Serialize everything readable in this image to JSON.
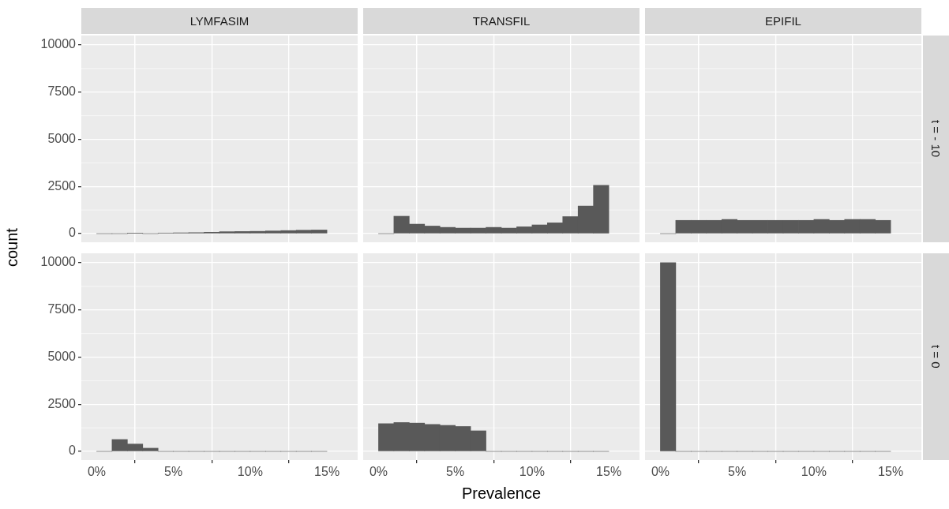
{
  "chart_data": [
    {
      "type": "histogram",
      "title": "LYMFASIM",
      "ylabel": "count",
      "bins": [
        0,
        1,
        2,
        3,
        4,
        5,
        6,
        7,
        8,
        9,
        10,
        11,
        12,
        13,
        14,
        15
      ],
      "values": [
        0,
        0,
        20,
        0,
        30,
        40,
        50,
        70,
        100,
        110,
        120,
        140,
        160,
        180,
        190
      ],
      "color": "#595959",
      "xlim": [
        -1,
        17
      ],
      "ylim": [
        -460,
        10500
      ],
      "yticks": [
        0,
        2500,
        5000,
        7500,
        10000
      ],
      "grid": true,
      "tick_labels": "y"
    },
    {
      "type": "histogram",
      "title": "TRANSFIL",
      "bins": [
        0,
        1,
        2,
        3,
        4,
        5,
        6,
        7,
        8,
        9,
        10,
        11,
        12,
        13,
        14,
        15
      ],
      "values": [
        0,
        920,
        500,
        400,
        330,
        290,
        290,
        330,
        290,
        360,
        460,
        570,
        900,
        1460,
        2560
      ],
      "color": "#595959",
      "xlim": [
        -1,
        17
      ],
      "ylim": [
        -460,
        10500
      ],
      "grid": true,
      "tick_labels": false
    },
    {
      "type": "histogram",
      "title": "EPIFIL",
      "annotations": [
        "t = - 10"
      ],
      "bins": [
        0,
        1,
        2,
        3,
        4,
        5,
        6,
        7,
        8,
        9,
        10,
        11,
        12,
        13,
        14,
        15
      ],
      "values": [
        0,
        700,
        700,
        700,
        750,
        700,
        700,
        700,
        700,
        700,
        750,
        700,
        750,
        750,
        700
      ],
      "color": "#595959",
      "xlim": [
        -1,
        17
      ],
      "ylim": [
        -460,
        10500
      ],
      "grid": true,
      "tick_labels": false
    },
    {
      "type": "histogram",
      "bins": [
        0,
        1,
        2,
        3,
        4,
        5,
        6,
        7,
        8,
        9,
        10,
        11,
        12,
        13,
        14,
        15
      ],
      "values": [
        0,
        630,
        390,
        170,
        0,
        0,
        0,
        0,
        0,
        0,
        0,
        0,
        0,
        0,
        0
      ],
      "color": "#595959",
      "xlim": [
        -1,
        17
      ],
      "ylim": [
        -460,
        10500
      ],
      "xticks": [
        {
          "value": 0,
          "label": "0%"
        },
        {
          "value": 5,
          "label": "5%"
        },
        {
          "value": 10,
          "label": "10%"
        },
        {
          "value": 15,
          "label": "15%"
        }
      ],
      "yticks": [
        0,
        2500,
        5000,
        7500,
        10000
      ],
      "grid": true
    },
    {
      "type": "histogram",
      "xlabel": "Prevalence",
      "bins": [
        0,
        1,
        2,
        3,
        4,
        5,
        6,
        7,
        8,
        9,
        10,
        11,
        12,
        13,
        14,
        15
      ],
      "values": [
        1470,
        1530,
        1500,
        1430,
        1380,
        1320,
        1090,
        0,
        0,
        0,
        0,
        0,
        0,
        0,
        0
      ],
      "color": "#595959",
      "xlim": [
        -1,
        17
      ],
      "ylim": [
        -460,
        10500
      ],
      "xticks": [
        {
          "value": 0,
          "label": "0%"
        },
        {
          "value": 5,
          "label": "5%"
        },
        {
          "value": 10,
          "label": "10%"
        },
        {
          "value": 15,
          "label": "15%"
        }
      ],
      "grid": true,
      "tick_labels": "x"
    },
    {
      "type": "histogram",
      "annotations": [
        "t = 0"
      ],
      "bins": [
        0,
        1,
        2,
        3,
        4,
        5,
        6,
        7,
        8,
        9,
        10,
        11,
        12,
        13,
        14,
        15
      ],
      "values": [
        10000,
        0,
        0,
        0,
        0,
        0,
        0,
        0,
        0,
        0,
        0,
        0,
        0,
        0,
        0
      ],
      "color": "#595959",
      "xlim": [
        -1,
        17
      ],
      "ylim": [
        -460,
        10500
      ],
      "xticks": [
        {
          "value": 0,
          "label": "0%"
        },
        {
          "value": 5,
          "label": "5%"
        },
        {
          "value": 10,
          "label": "10%"
        },
        {
          "value": 15,
          "label": "15%"
        }
      ],
      "grid": true,
      "tick_labels": "x"
    }
  ]
}
